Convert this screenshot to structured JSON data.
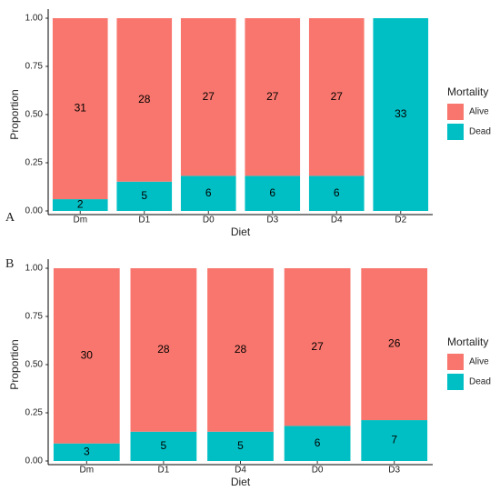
{
  "chart_data": [
    {
      "type": "bar",
      "stacked": true,
      "label": "A",
      "xlabel": "Diet",
      "ylabel": "Proportion",
      "legend_title": "Mortality",
      "categories": [
        "Dm",
        "D1",
        "D0",
        "D3",
        "D4",
        "D2"
      ],
      "series": [
        {
          "name": "Alive",
          "color": "#F8766D",
          "values": [
            0.939,
            0.848,
            0.818,
            0.818,
            0.818,
            0
          ],
          "counts": [
            31,
            28,
            27,
            27,
            27,
            null
          ]
        },
        {
          "name": "Dead",
          "color": "#00BFC4",
          "values": [
            0.061,
            0.152,
            0.182,
            0.182,
            0.182,
            1
          ],
          "counts": [
            2,
            5,
            6,
            6,
            6,
            33
          ]
        }
      ],
      "ylim": [
        0,
        1
      ],
      "yticks": [
        {
          "value": 0,
          "label": "0.00"
        },
        {
          "value": 0.25,
          "label": "0.25"
        },
        {
          "value": 0.5,
          "label": "0.50"
        },
        {
          "value": 0.75,
          "label": "0.75"
        },
        {
          "value": 1,
          "label": "1.00"
        }
      ]
    },
    {
      "type": "bar",
      "stacked": true,
      "label": "B",
      "xlabel": "Diet",
      "ylabel": "Proportion",
      "legend_title": "Mortality",
      "categories": [
        "Dm",
        "D1",
        "D4",
        "D0",
        "D3"
      ],
      "series": [
        {
          "name": "Alive",
          "color": "#F8766D",
          "values": [
            0.909,
            0.848,
            0.848,
            0.818,
            0.788
          ],
          "counts": [
            30,
            28,
            28,
            27,
            26
          ]
        },
        {
          "name": "Dead",
          "color": "#00BFC4",
          "values": [
            0.091,
            0.152,
            0.152,
            0.182,
            0.212
          ],
          "counts": [
            3,
            5,
            5,
            6,
            7
          ]
        }
      ],
      "ylim": [
        0,
        1
      ],
      "yticks": [
        {
          "value": 0,
          "label": "0.00"
        },
        {
          "value": 0.25,
          "label": "0.25"
        },
        {
          "value": 0.5,
          "label": "0.50"
        },
        {
          "value": 0.75,
          "label": "0.75"
        },
        {
          "value": 1,
          "label": "1.00"
        }
      ]
    }
  ]
}
